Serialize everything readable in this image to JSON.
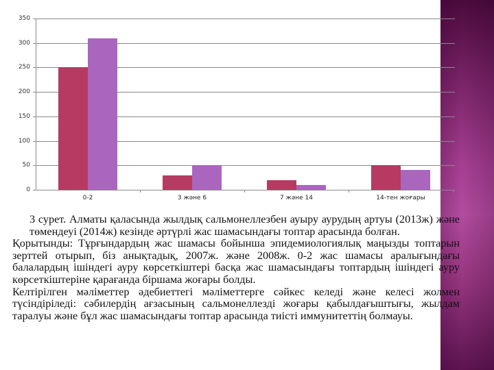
{
  "chart_data": {
    "type": "bar",
    "title": "",
    "xlabel": "",
    "ylabel": "",
    "ylim": [
      0,
      350
    ],
    "yticks": [
      0,
      50,
      100,
      150,
      200,
      250,
      300,
      350
    ],
    "grid": true,
    "legend": "none",
    "categories": [
      "0-2",
      "3 және 6",
      "7 және 14",
      "14-тен жоғары"
    ],
    "series": [
      {
        "name": "2013ж",
        "color": "#b53b63",
        "values": [
          250,
          30,
          20,
          50
        ]
      },
      {
        "name": "2014ж",
        "color": "#aa66bf",
        "values": [
          310,
          50,
          10,
          40
        ]
      }
    ]
  },
  "yticks_labels": [
    "350",
    "300",
    "250",
    "200",
    "150",
    "100",
    "50",
    "0"
  ],
  "xlabels": [
    "0-2",
    "3 және 6",
    "7 және 14",
    "14-тен жоғары"
  ],
  "colors": {
    "series1": "#b53b63",
    "series2": "#aa66bf",
    "sidebar_dark": "#4a0a3c",
    "sidebar_light": "#b24c9f"
  },
  "text": {
    "caption": "3 сурет. Алматы қаласында жылдық сальмонеллезбен ауыру аурудың артуы (2013ж) және төмендеуі (2014ж) кезінде әртүрлі жас шамасындағы топтар арасында болған.",
    "paragraph1": "Қорытынды: Тұрғындардың жас шамасы бойынша эпидемиологиялық маңызды топтарын зерттей отырып, біз анықтадық, 2007ж. және 2008ж. 0-2 жас шамасы аралығындағы балалардың ішіндегі ауру көрсеткіштері басқа жас шамасындағы топтардың ішіндегі ауру көрсеткіштеріне қарағанда біршама жоғары болды.",
    "paragraph2": "Келтірілген мәліметтер әдебиеттегі мәліметтерге сәйкес келеді және келесі жолмен түсіндіріледі: сәбилердің ағзасының сальмонеллезді жоғары қабылдағыштығы, жылдам таралуы және бұл жас шамасындағы топтар арасында тиісті иммунитеттің болмауы."
  }
}
